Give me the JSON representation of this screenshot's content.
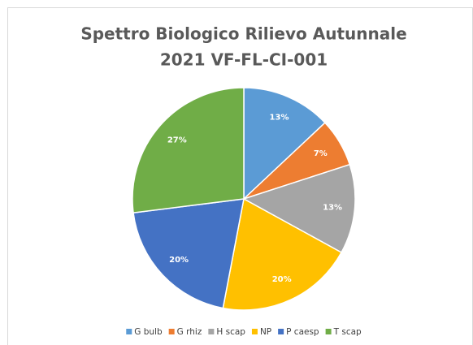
{
  "chart_data": {
    "type": "pie",
    "title": [
      "Spettro Biologico Rilievo Autunnale",
      "2021 VF-FL-CI-001"
    ],
    "categories": [
      "G bulb",
      "G rhiz",
      "H scap",
      "NP",
      "P caesp",
      "T scap"
    ],
    "values": [
      13,
      7,
      13,
      20,
      20,
      27
    ],
    "value_labels": [
      "13%",
      "7%",
      "13%",
      "20%",
      "20%",
      "27%"
    ],
    "colors": [
      "#5b9bd5",
      "#ed7d31",
      "#a5a5a5",
      "#ffc000",
      "#4472c4",
      "#70ad47"
    ],
    "legend": "bottom"
  }
}
